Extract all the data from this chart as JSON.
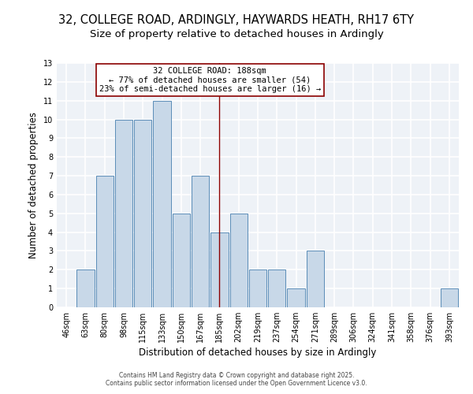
{
  "title1": "32, COLLEGE ROAD, ARDINGLY, HAYWARDS HEATH, RH17 6TY",
  "title2": "Size of property relative to detached houses in Ardingly",
  "xlabel": "Distribution of detached houses by size in Ardingly",
  "ylabel": "Number of detached properties",
  "categories": [
    "46sqm",
    "63sqm",
    "80sqm",
    "98sqm",
    "115sqm",
    "133sqm",
    "150sqm",
    "167sqm",
    "185sqm",
    "202sqm",
    "219sqm",
    "237sqm",
    "254sqm",
    "271sqm",
    "289sqm",
    "306sqm",
    "324sqm",
    "341sqm",
    "358sqm",
    "376sqm",
    "393sqm"
  ],
  "values": [
    0,
    2,
    7,
    10,
    10,
    11,
    5,
    7,
    4,
    5,
    2,
    2,
    1,
    3,
    0,
    0,
    0,
    0,
    0,
    0,
    1
  ],
  "bar_color": "#c8d8e8",
  "bar_edge_color": "#5b8db8",
  "property_line_index": 8,
  "property_line_color": "#8b0000",
  "annotation_text": "32 COLLEGE ROAD: 188sqm\n← 77% of detached houses are smaller (54)\n23% of semi-detached houses are larger (16) →",
  "annotation_box_color": "white",
  "annotation_box_edge_color": "#8b0000",
  "ylim": [
    0,
    13
  ],
  "yticks": [
    0,
    1,
    2,
    3,
    4,
    5,
    6,
    7,
    8,
    9,
    10,
    11,
    12,
    13
  ],
  "background_color": "#eef2f7",
  "grid_color": "white",
  "footer1": "Contains HM Land Registry data © Crown copyright and database right 2025.",
  "footer2": "Contains public sector information licensed under the Open Government Licence v3.0.",
  "title_fontsize": 10.5,
  "subtitle_fontsize": 9.5,
  "tick_fontsize": 7,
  "ylabel_fontsize": 8.5,
  "xlabel_fontsize": 8.5,
  "annotation_fontsize": 7.5,
  "footer_fontsize": 5.5
}
